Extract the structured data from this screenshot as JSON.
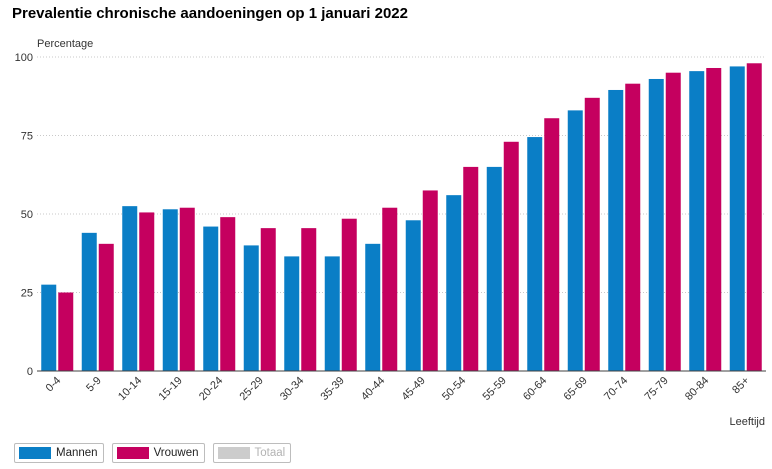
{
  "title": "Prevalentie chronische aandoeningen op 1 januari 2022",
  "colors": {
    "mannen": "#0a7ec6",
    "vrouwen": "#c5005f",
    "totaal": "#cccccc",
    "grid": "#c9c9c9",
    "axis": "#404040"
  },
  "legend": [
    {
      "label": "Mannen",
      "color": "#0a7ec6",
      "active": true
    },
    {
      "label": "Vrouwen",
      "color": "#c5005f",
      "active": true
    },
    {
      "label": "Totaal",
      "color": "#cccccc",
      "active": false
    }
  ],
  "chart_data": {
    "type": "bar",
    "title": "Prevalentie chronische aandoeningen op 1 januari 2022",
    "ylabel": "Percentage",
    "xlabel": "Leeftijd",
    "ylim": [
      0,
      100
    ],
    "yticks": [
      0,
      25,
      50,
      75,
      100
    ],
    "grid": true,
    "legend_position": "bottom-left",
    "categories": [
      "0-4",
      "5-9",
      "10-14",
      "15-19",
      "20-24",
      "25-29",
      "30-34",
      "35-39",
      "40-44",
      "45-49",
      "50-54",
      "55-59",
      "60-64",
      "65-69",
      "70-74",
      "75-79",
      "80-84",
      "85+"
    ],
    "series": [
      {
        "name": "Mannen",
        "values": [
          27.5,
          44,
          52.5,
          51.5,
          46,
          40,
          36.5,
          36.5,
          40.5,
          48,
          56,
          65,
          74.5,
          83,
          89.5,
          93,
          95.5,
          97
        ]
      },
      {
        "name": "Vrouwen",
        "values": [
          25,
          40.5,
          50.5,
          52,
          49,
          45.5,
          45.5,
          48.5,
          52,
          57.5,
          65,
          73,
          80.5,
          87,
          91.5,
          95,
          96.5,
          98
        ]
      }
    ]
  }
}
